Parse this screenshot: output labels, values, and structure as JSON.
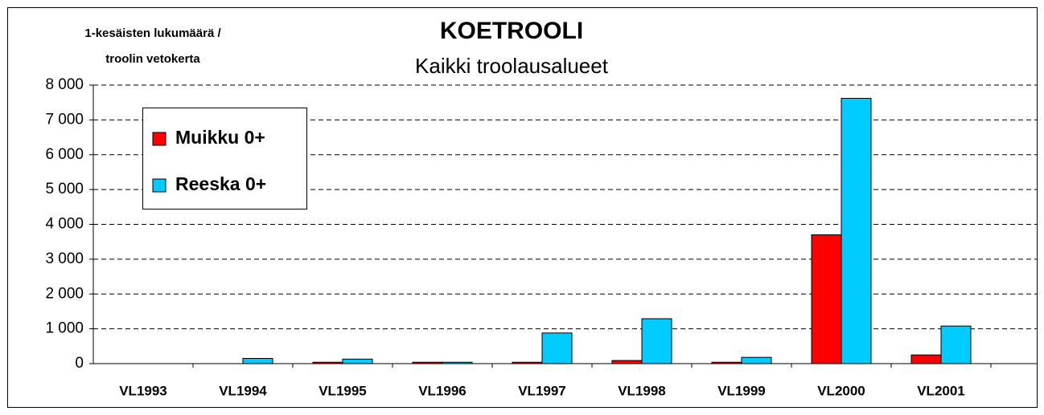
{
  "chart_data": {
    "type": "bar",
    "title": "KOETROOLI",
    "subtitle": "Kaikki troolausalueet",
    "ylabel": [
      "1-kesäisten lukumäärä /",
      "troolin vetokerta"
    ],
    "categories": [
      "VL1993",
      "VL1994",
      "VL1995",
      "VL1996",
      "VL1997",
      "VL1998",
      "VL1999",
      "VL2000",
      "VL2001"
    ],
    "series": [
      {
        "name": "Muikku 0+",
        "color": "#ff0000",
        "values": [
          0,
          0,
          40,
          40,
          40,
          90,
          40,
          3700,
          250
        ]
      },
      {
        "name": "Reeska 0+",
        "color": "#00ccff",
        "values": [
          0,
          150,
          130,
          40,
          880,
          1290,
          180,
          7620,
          1080
        ]
      }
    ],
    "ylim": [
      0,
      8000
    ],
    "yticks": [
      0,
      {
        "value": 1000,
        "label": "1 000"
      },
      {
        "value": 2000,
        "label": "2 000"
      },
      {
        "value": 3000,
        "label": "3 000"
      },
      {
        "value": 4000,
        "label": "4 000"
      },
      {
        "value": 5000,
        "label": "5 000"
      },
      {
        "value": 6000,
        "label": "6 000"
      },
      {
        "value": 7000,
        "label": "7 000"
      },
      {
        "value": 8000,
        "label": "8 000"
      }
    ],
    "grid": true,
    "legend": "upper left"
  }
}
